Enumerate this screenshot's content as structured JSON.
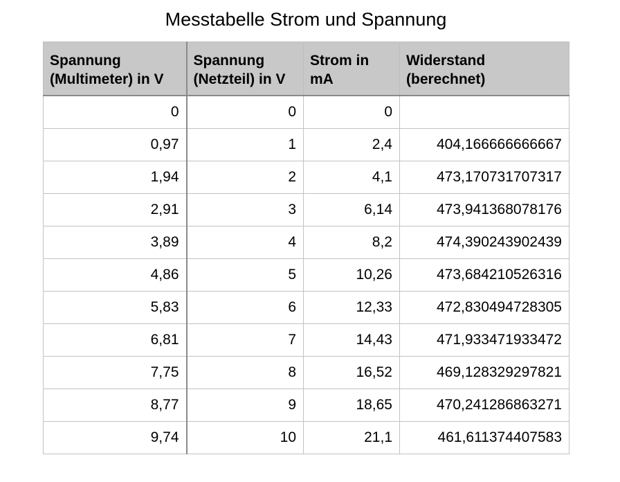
{
  "title": "Messtabelle Strom und Spannung",
  "columns": [
    "Spannung (Multimeter) in V",
    "Spannung (Netzteil) in V",
    "Strom in mA",
    "Widerstand (berechnet)"
  ],
  "rows": [
    [
      "0",
      "0",
      "0",
      ""
    ],
    [
      "0,97",
      "1",
      "2,4",
      "404,166666666667"
    ],
    [
      "1,94",
      "2",
      "4,1",
      "473,170731707317"
    ],
    [
      "2,91",
      "3",
      "6,14",
      "473,941368078176"
    ],
    [
      "3,89",
      "4",
      "8,2",
      "474,390243902439"
    ],
    [
      "4,86",
      "5",
      "10,26",
      "473,684210526316"
    ],
    [
      "5,83",
      "6",
      "12,33",
      "472,830494728305"
    ],
    [
      "6,81",
      "7",
      "14,43",
      "471,933471933472"
    ],
    [
      "7,75",
      "8",
      "16,52",
      "469,128329297821"
    ],
    [
      "8,77",
      "9",
      "18,65",
      "470,241286863271"
    ],
    [
      "9,74",
      "10",
      "21,1",
      "461,611374407583"
    ]
  ]
}
